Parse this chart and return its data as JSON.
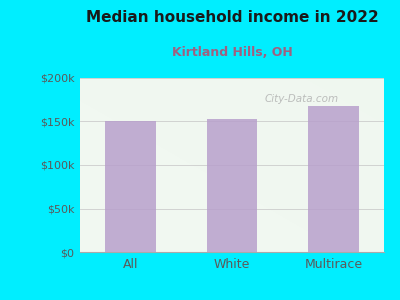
{
  "title": "Median household income in 2022",
  "subtitle": "Kirtland Hills, OH",
  "categories": [
    "All",
    "White",
    "Multirace"
  ],
  "values": [
    150000,
    153000,
    168000
  ],
  "bar_color": "#b8a0cc",
  "background_outer": "#00eeff",
  "title_color": "#1a1a1a",
  "subtitle_color": "#a06080",
  "tick_label_color": "#5a5a5a",
  "ytick_labels": [
    "$0",
    "$50k",
    "$100k",
    "$150k",
    "$200k"
  ],
  "ytick_values": [
    0,
    50000,
    100000,
    150000,
    200000
  ],
  "ylim": [
    0,
    200000
  ],
  "watermark": "City-Data.com",
  "plot_bg_top": "#f0f8f0",
  "plot_bg_bottom": "#f8fff8",
  "grid_color": "#cccccc"
}
